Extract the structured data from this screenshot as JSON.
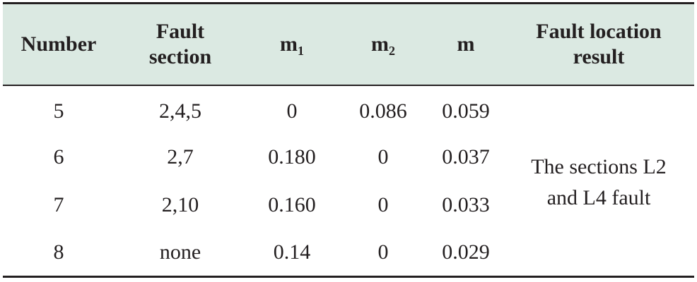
{
  "table": {
    "headers": {
      "number": "Number",
      "fault_section_line1": "Fault",
      "fault_section_line2": "section",
      "m1_base": "m",
      "m1_sub": "1",
      "m2_base": "m",
      "m2_sub": "2",
      "m": "m",
      "result_line1": "Fault location",
      "result_line2": "result"
    },
    "rows": [
      {
        "number": "5",
        "fault_section": "2,4,5",
        "m1": "0",
        "m2": "0.086",
        "m": "0.059"
      },
      {
        "number": "6",
        "fault_section": "2,7",
        "m1": "0.180",
        "m2": "0",
        "m": "0.037"
      },
      {
        "number": "7",
        "fault_section": "2,10",
        "m1": "0.160",
        "m2": "0",
        "m": "0.033"
      },
      {
        "number": "8",
        "fault_section": "none",
        "m1": "0.14",
        "m2": "0",
        "m": "0.029"
      }
    ],
    "result": {
      "line1": "The sections L2",
      "line2": "and L4 fault"
    }
  }
}
